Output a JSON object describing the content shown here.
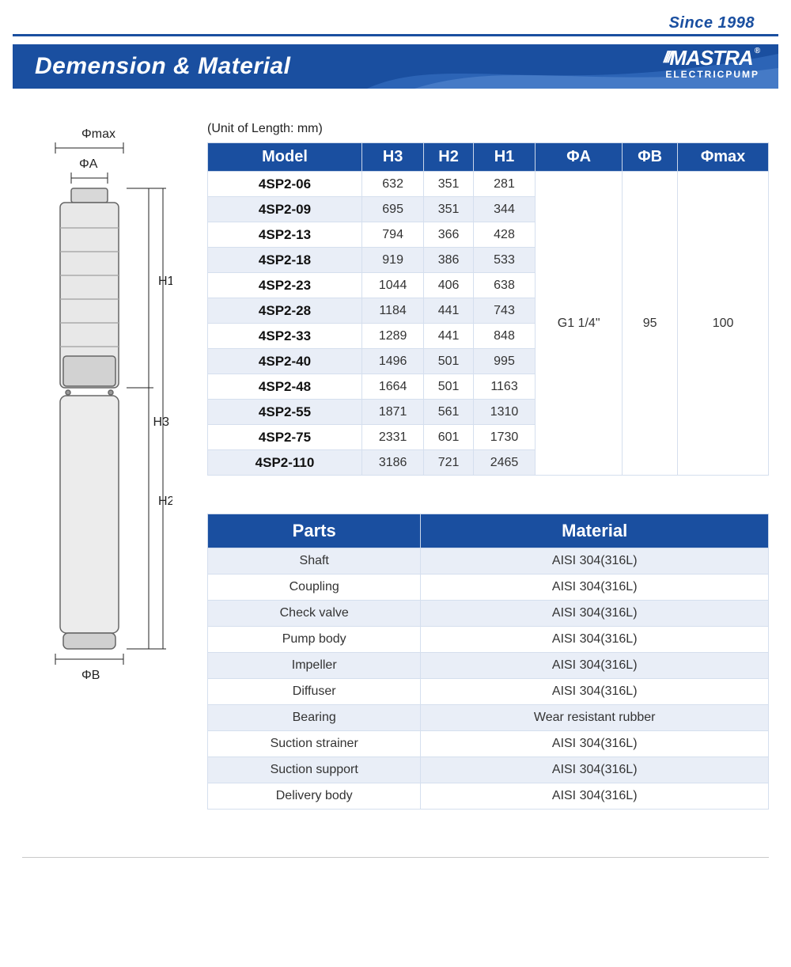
{
  "header": {
    "since": "Since 1998",
    "title": "Demension & Material",
    "logo_word": "MASTRA",
    "logo_sub": "ELECTRICPUMP",
    "reg_mark": "®"
  },
  "unit_note": "(Unit of Length: mm)",
  "diagram_labels": {
    "phi_max": "Φmax",
    "phi_a": "ΦA",
    "phi_b": "ΦB",
    "h1": "H1",
    "h2": "H2",
    "h3": "H3"
  },
  "dim_table": {
    "columns": [
      "Model",
      "H3",
      "H2",
      "H1",
      "ΦA",
      "ΦB",
      "Φmax"
    ],
    "rows": [
      {
        "model": "4SP2-06",
        "h3": "632",
        "h2": "351",
        "h1": "281"
      },
      {
        "model": "4SP2-09",
        "h3": "695",
        "h2": "351",
        "h1": "344"
      },
      {
        "model": "4SP2-13",
        "h3": "794",
        "h2": "366",
        "h1": "428"
      },
      {
        "model": "4SP2-18",
        "h3": "919",
        "h2": "386",
        "h1": "533"
      },
      {
        "model": "4SP2-23",
        "h3": "1044",
        "h2": "406",
        "h1": "638"
      },
      {
        "model": "4SP2-28",
        "h3": "1184",
        "h2": "441",
        "h1": "743"
      },
      {
        "model": "4SP2-33",
        "h3": "1289",
        "h2": "441",
        "h1": "848"
      },
      {
        "model": "4SP2-40",
        "h3": "1496",
        "h2": "501",
        "h1": "995"
      },
      {
        "model": "4SP2-48",
        "h3": "1664",
        "h2": "501",
        "h1": "1163"
      },
      {
        "model": "4SP2-55",
        "h3": "1871",
        "h2": "561",
        "h1": "1310"
      },
      {
        "model": "4SP2-75",
        "h3": "2331",
        "h2": "601",
        "h1": "1730"
      },
      {
        "model": "4SP2-110",
        "h3": "3186",
        "h2": "721",
        "h1": "2465"
      }
    ],
    "phi_a": "G1 1/4\"",
    "phi_b": "95",
    "phi_max": "100"
  },
  "mat_table": {
    "columns": [
      "Parts",
      "Material"
    ],
    "rows": [
      {
        "part": "Shaft",
        "material": "AISI 304(316L)"
      },
      {
        "part": "Coupling",
        "material": "AISI 304(316L)"
      },
      {
        "part": "Check valve",
        "material": "AISI 304(316L)"
      },
      {
        "part": "Pump body",
        "material": "AISI 304(316L)"
      },
      {
        "part": "Impeller",
        "material": "AISI 304(316L)"
      },
      {
        "part": "Diffuser",
        "material": "AISI 304(316L)"
      },
      {
        "part": "Bearing",
        "material": "Wear resistant rubber"
      },
      {
        "part": "Suction strainer",
        "material": "AISI 304(316L)"
      },
      {
        "part": "Suction support",
        "material": "AISI 304(316L)"
      },
      {
        "part": "Delivery body",
        "material": "AISI 304(316L)"
      }
    ]
  },
  "colors": {
    "brand_blue": "#1a4fa0",
    "row_alt_bg": "#e9eef7",
    "border_light": "#d5dfee"
  }
}
